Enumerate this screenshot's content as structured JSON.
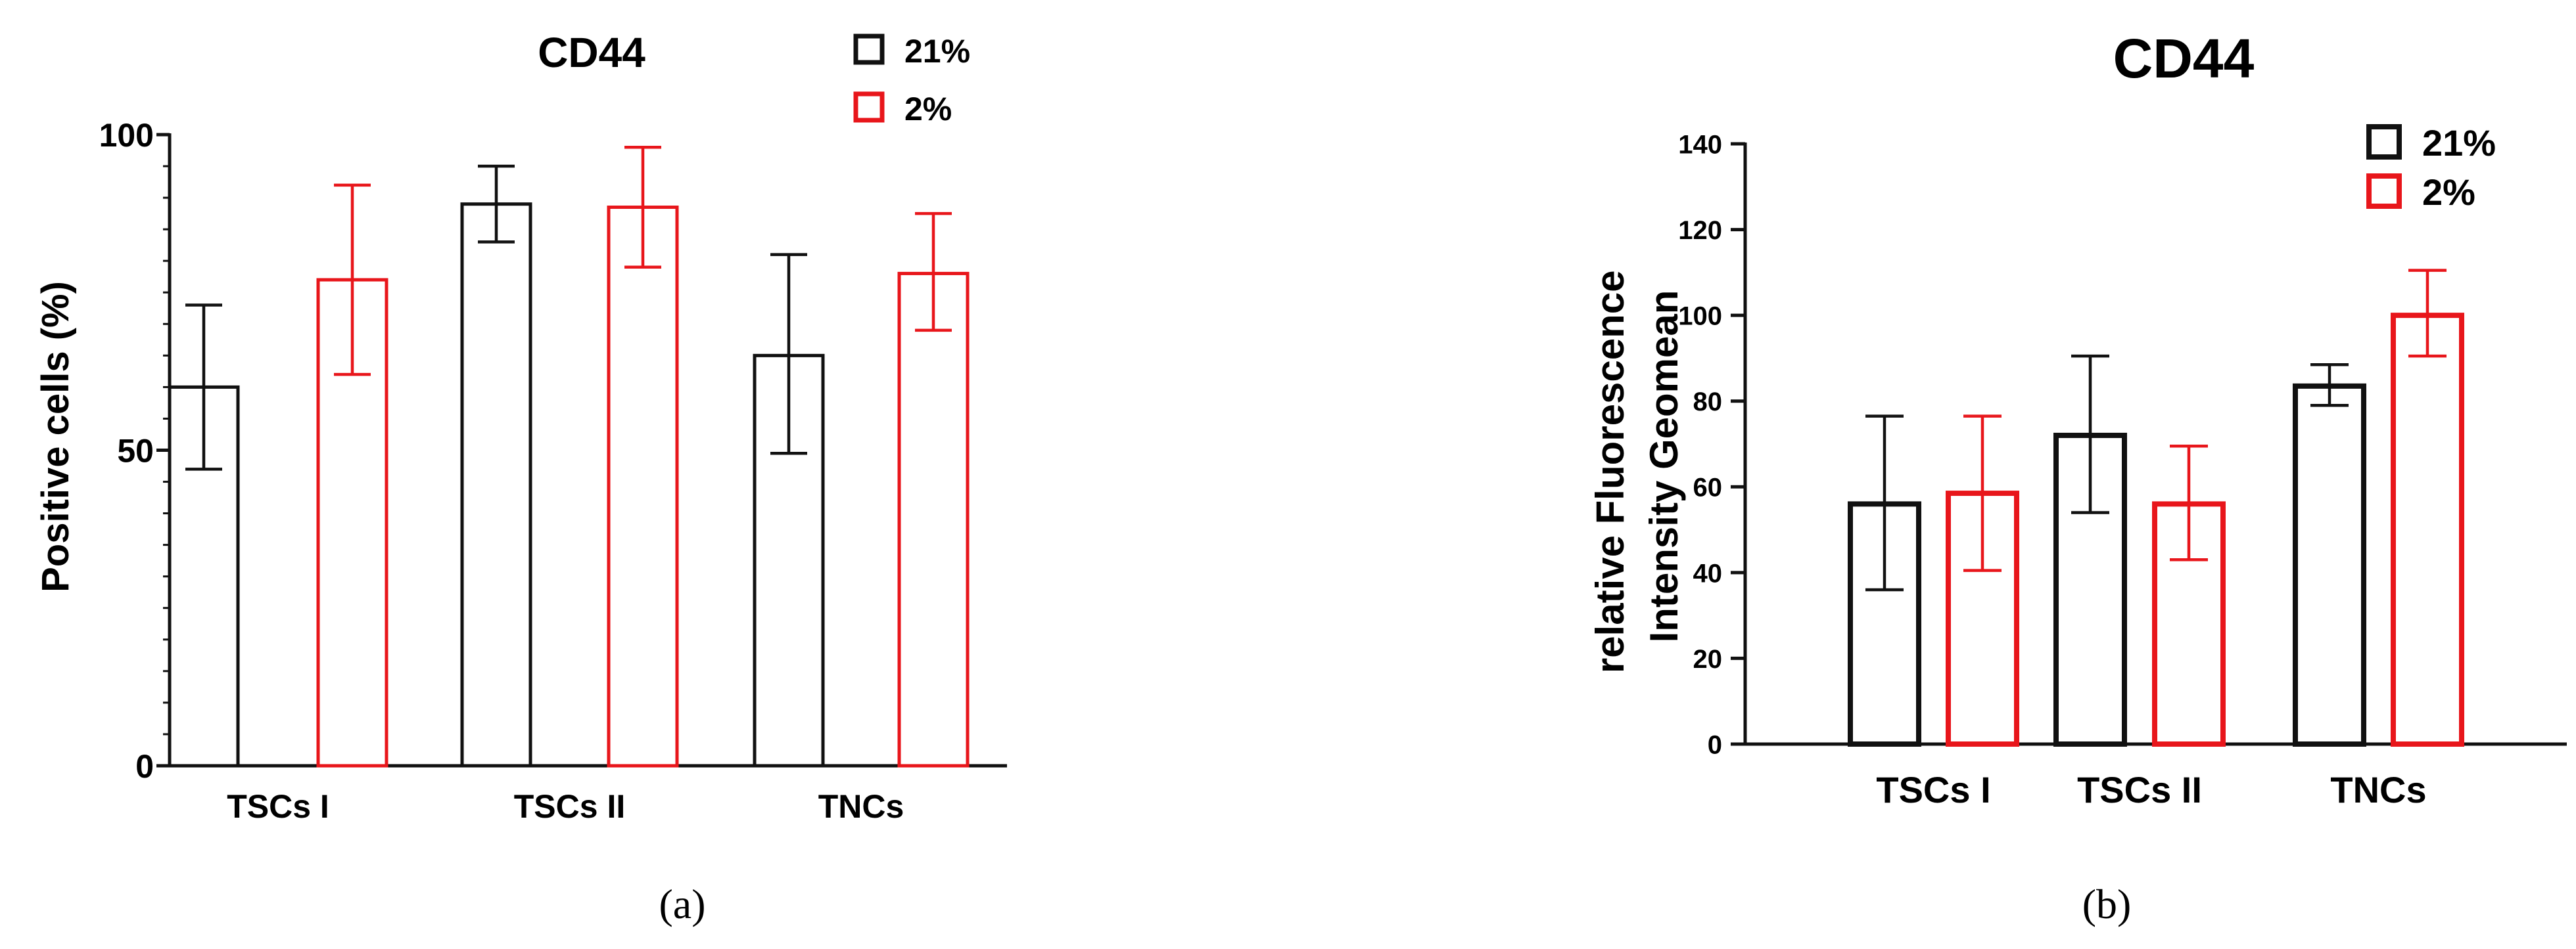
{
  "colors": {
    "series_21": "#111111",
    "series_2": "#e8161b",
    "axis": "#111111"
  },
  "panel_a_label": "(a)",
  "panel_b_label": "(b)",
  "chart_data": [
    {
      "panel": "a",
      "type": "bar",
      "title": "CD44",
      "xlabel": "",
      "ylabel": "Positive cells (%)",
      "ylim": [
        0,
        100
      ],
      "yticks": [
        0,
        50,
        100
      ],
      "y_minor_step": 5,
      "categories": [
        "TSCs I",
        "TSCs II",
        "TNCs"
      ],
      "legend_position": "top-right",
      "grid": false,
      "series": [
        {
          "name": "21%",
          "color": "#111111",
          "values": [
            60,
            89,
            65
          ],
          "err_low": [
            47,
            83,
            49.5
          ],
          "err_high": [
            73,
            95,
            81
          ]
        },
        {
          "name": "2%",
          "color": "#e8161b",
          "values": [
            77,
            88.5,
            78
          ],
          "err_low": [
            62,
            79,
            69
          ],
          "err_high": [
            92,
            98,
            87.5
          ]
        }
      ]
    },
    {
      "panel": "b",
      "type": "bar",
      "title": "CD44",
      "xlabel": "",
      "ylabel": "relative Fluorescence Intensity Geomean",
      "ylim": [
        0,
        140
      ],
      "yticks": [
        0,
        20,
        40,
        60,
        80,
        100,
        120,
        140
      ],
      "categories": [
        "TSCs I",
        "TSCs II",
        "TNCs"
      ],
      "legend_position": "top-right",
      "grid": false,
      "series": [
        {
          "name": "21%",
          "color": "#111111",
          "values": [
            56,
            72,
            83.5
          ],
          "err_low": [
            36,
            54,
            79
          ],
          "err_high": [
            76.5,
            90.5,
            88.5
          ]
        },
        {
          "name": "2%",
          "color": "#e8161b",
          "values": [
            58.5,
            56,
            100
          ],
          "err_low": [
            40.5,
            43,
            90.5
          ],
          "err_high": [
            76.5,
            69.5,
            110.5
          ]
        }
      ]
    }
  ]
}
